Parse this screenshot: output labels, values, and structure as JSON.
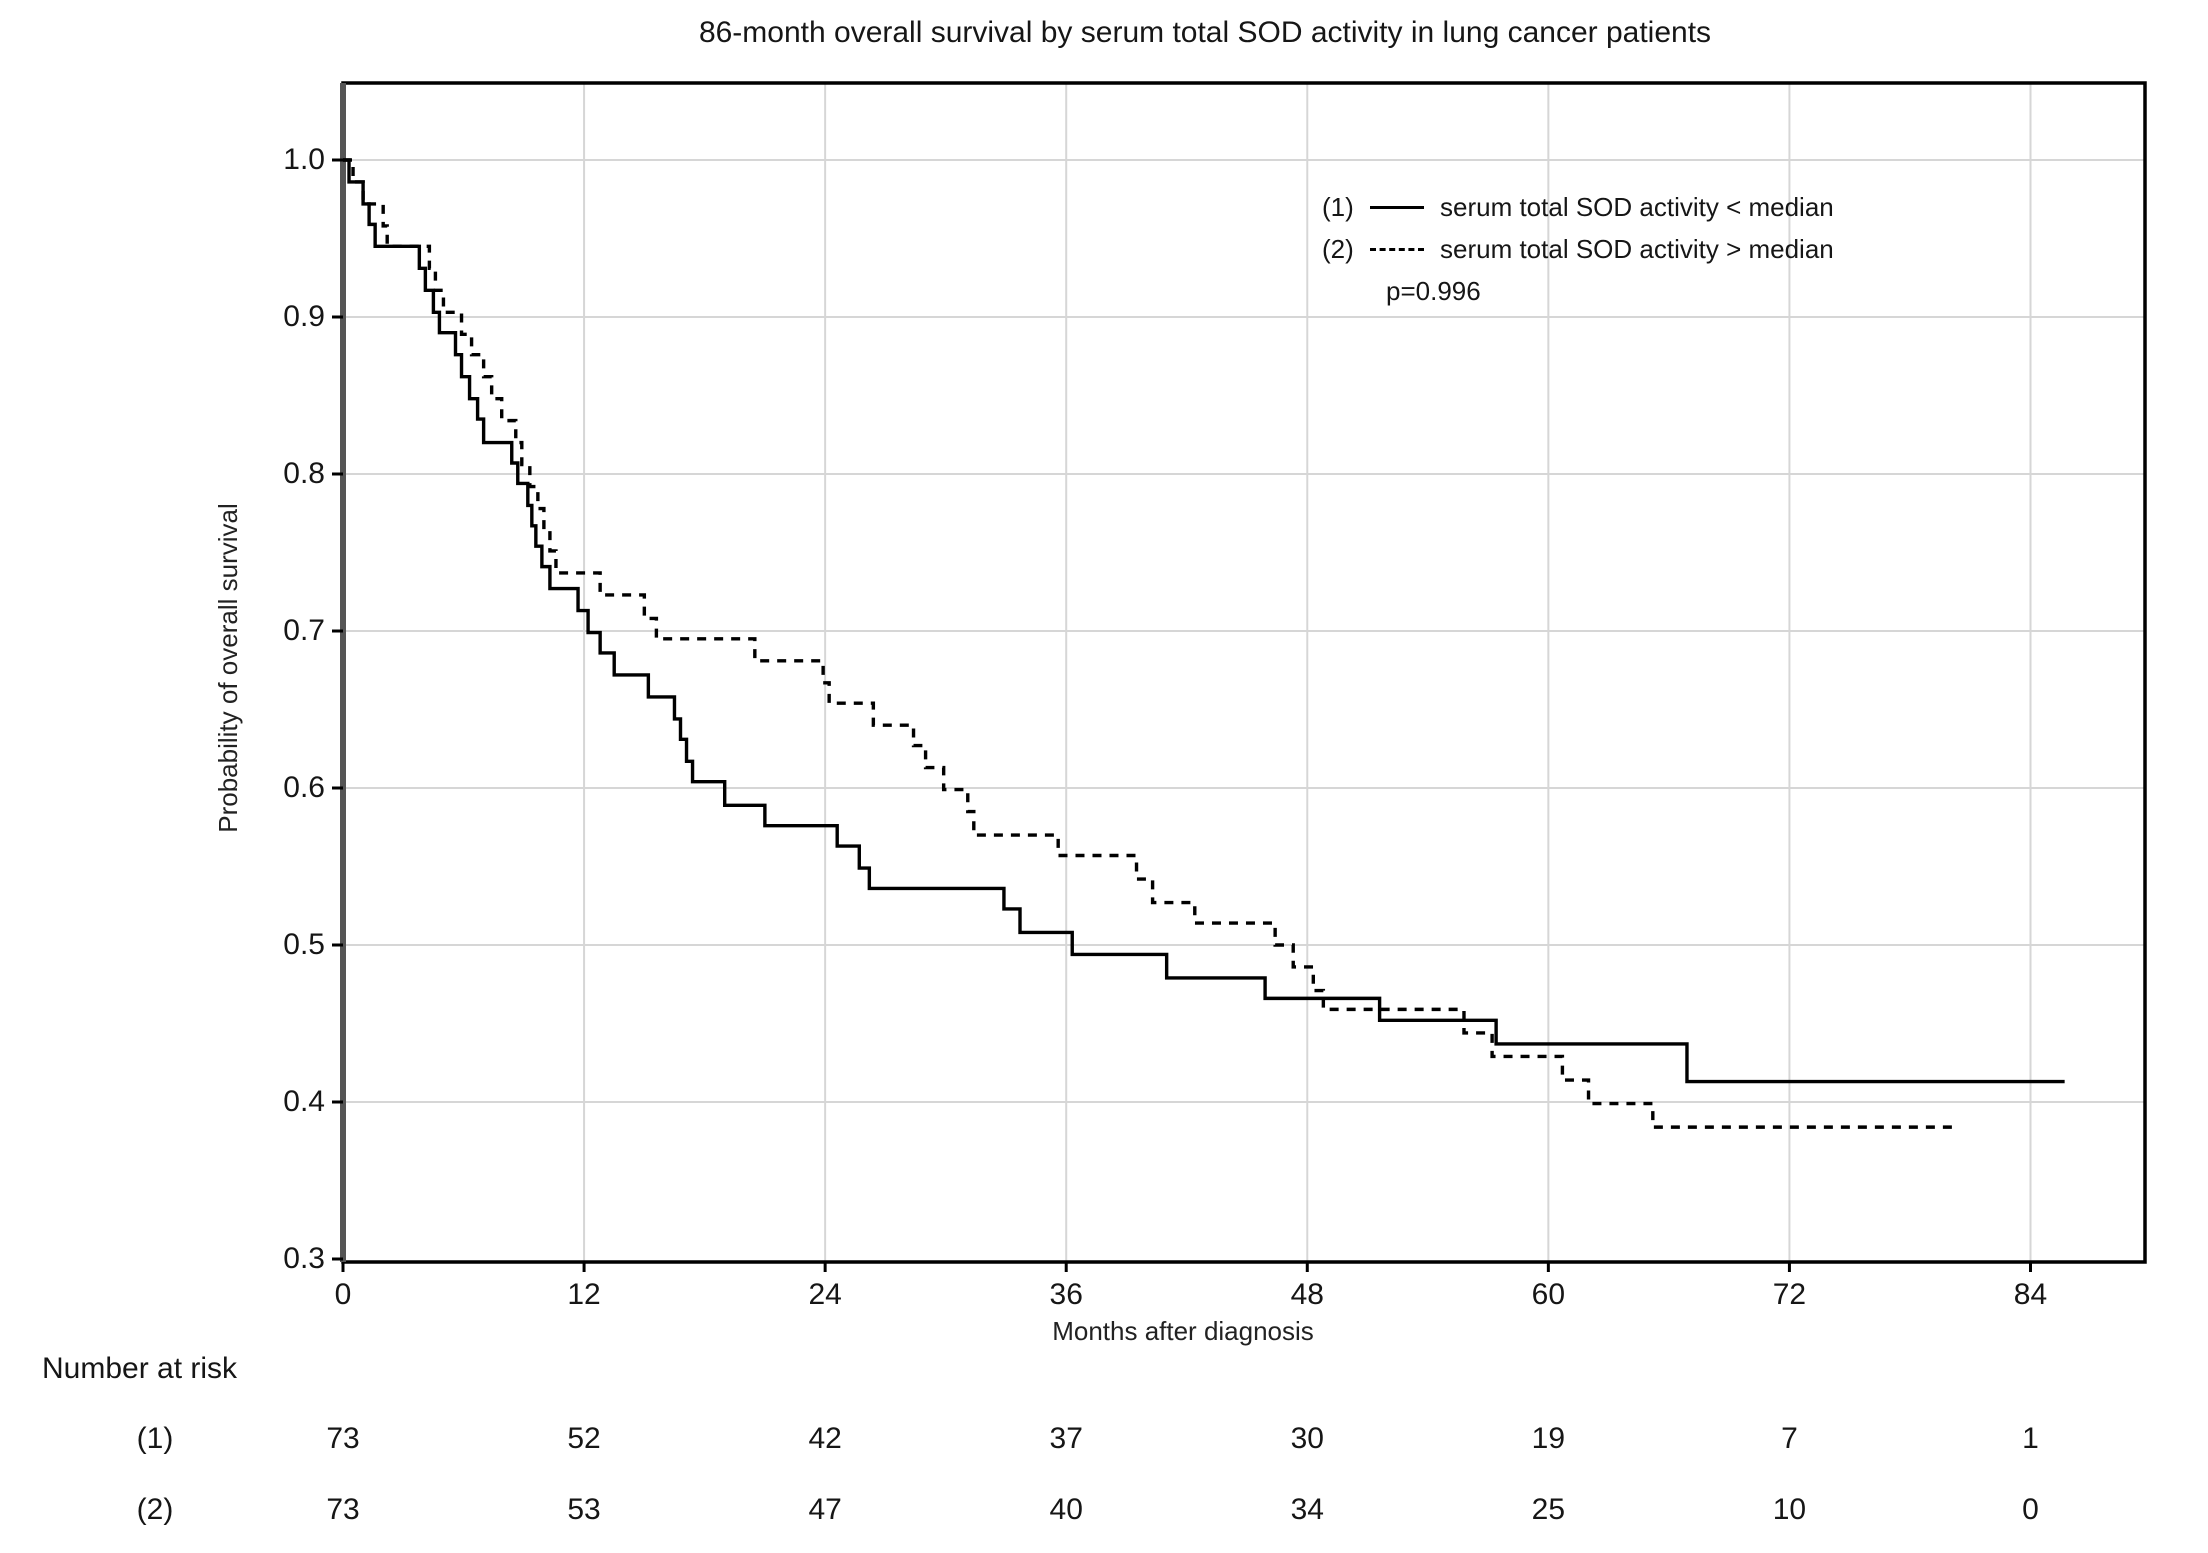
{
  "title": "86-month overall survival by serum total SOD activity in lung cancer patients",
  "y_axis": {
    "label": "Probability of overall survival",
    "ticks": [
      "1.0",
      "0.9",
      "0.8",
      "0.7",
      "0.6",
      "0.5",
      "0.4",
      "0.3"
    ]
  },
  "x_axis": {
    "label": "Months after diagnosis",
    "ticks": [
      "0",
      "12",
      "24",
      "36",
      "48",
      "60",
      "72",
      "84"
    ]
  },
  "legend": {
    "items": [
      {
        "marker_label": "(1)",
        "line_style": "solid",
        "text": "serum total SOD activity < median"
      },
      {
        "marker_label": "(2)",
        "line_style": "dashed",
        "text": "serum total SOD activity > median"
      }
    ],
    "p_value": "p=0.996"
  },
  "number_at_risk": {
    "heading": "Number at risk",
    "rows": [
      {
        "label": "(1)",
        "counts": [
          "73",
          "52",
          "42",
          "37",
          "30",
          "19",
          "7",
          "1"
        ]
      },
      {
        "label": "(2)",
        "counts": [
          "73",
          "53",
          "47",
          "40",
          "34",
          "25",
          "10",
          "0"
        ]
      }
    ]
  },
  "colors": {
    "curve": "#000000",
    "grid": "#d6d6d6",
    "border": "#000000",
    "axis_spine": "#555555",
    "background": "#ffffff",
    "text": "#161616"
  },
  "chart_data": {
    "type": "line",
    "subtype": "kaplan_meier_step",
    "title": "86-month overall survival by serum total SOD activity in lung cancer patients",
    "xlabel": "Months after diagnosis",
    "ylabel": "Probability of overall survival",
    "xlim": [
      0,
      89.7
    ],
    "ylim": [
      0.3,
      1.05
    ],
    "x_tick_values": [
      0,
      12,
      24,
      36,
      48,
      60,
      72,
      84
    ],
    "y_tick_values": [
      1.0,
      0.9,
      0.8,
      0.7,
      0.6,
      0.5,
      0.4,
      0.3
    ],
    "grid": true,
    "legend_position": "upper-right-inside",
    "annotation": "p=0.996",
    "series": [
      {
        "name": "(1) serum total SOD activity < median",
        "style": "solid",
        "end_month": 85.7,
        "steps": [
          [
            0,
            1.0
          ],
          [
            0.3,
            0.986
          ],
          [
            1.0,
            0.972
          ],
          [
            1.3,
            0.959
          ],
          [
            1.6,
            0.945
          ],
          [
            3.8,
            0.931
          ],
          [
            4.1,
            0.917
          ],
          [
            4.5,
            0.903
          ],
          [
            4.8,
            0.89
          ],
          [
            5.6,
            0.876
          ],
          [
            5.9,
            0.862
          ],
          [
            6.3,
            0.848
          ],
          [
            6.7,
            0.835
          ],
          [
            7.0,
            0.82
          ],
          [
            8.4,
            0.807
          ],
          [
            8.7,
            0.794
          ],
          [
            9.2,
            0.78
          ],
          [
            9.4,
            0.767
          ],
          [
            9.6,
            0.754
          ],
          [
            9.9,
            0.741
          ],
          [
            10.3,
            0.727
          ],
          [
            11.7,
            0.713
          ],
          [
            12.2,
            0.699
          ],
          [
            12.8,
            0.686
          ],
          [
            13.5,
            0.672
          ],
          [
            15.2,
            0.658
          ],
          [
            16.5,
            0.644
          ],
          [
            16.8,
            0.631
          ],
          [
            17.1,
            0.617
          ],
          [
            17.4,
            0.604
          ],
          [
            19.0,
            0.589
          ],
          [
            21.0,
            0.576
          ],
          [
            24.6,
            0.563
          ],
          [
            25.7,
            0.549
          ],
          [
            26.2,
            0.536
          ],
          [
            32.9,
            0.523
          ],
          [
            33.7,
            0.508
          ],
          [
            36.3,
            0.494
          ],
          [
            41.0,
            0.479
          ],
          [
            45.9,
            0.466
          ],
          [
            51.6,
            0.452
          ],
          [
            57.4,
            0.437
          ],
          [
            66.9,
            0.413
          ]
        ]
      },
      {
        "name": "(2) serum total SOD activity > median",
        "style": "dashed",
        "end_month": 80.3,
        "steps": [
          [
            0,
            1.0
          ],
          [
            0.5,
            0.986
          ],
          [
            1.0,
            0.972
          ],
          [
            2.0,
            0.958
          ],
          [
            2.2,
            0.945
          ],
          [
            4.3,
            0.931
          ],
          [
            4.6,
            0.917
          ],
          [
            5.0,
            0.903
          ],
          [
            5.9,
            0.889
          ],
          [
            6.4,
            0.876
          ],
          [
            7.0,
            0.862
          ],
          [
            7.4,
            0.848
          ],
          [
            7.9,
            0.834
          ],
          [
            8.6,
            0.82
          ],
          [
            8.9,
            0.806
          ],
          [
            9.3,
            0.792
          ],
          [
            9.7,
            0.778
          ],
          [
            10.0,
            0.764
          ],
          [
            10.3,
            0.751
          ],
          [
            10.6,
            0.737
          ],
          [
            12.8,
            0.723
          ],
          [
            15.0,
            0.708
          ],
          [
            15.6,
            0.695
          ],
          [
            20.5,
            0.681
          ],
          [
            23.9,
            0.667
          ],
          [
            24.2,
            0.654
          ],
          [
            26.4,
            0.64
          ],
          [
            28.4,
            0.627
          ],
          [
            29.0,
            0.613
          ],
          [
            29.9,
            0.599
          ],
          [
            31.1,
            0.585
          ],
          [
            31.4,
            0.57
          ],
          [
            35.6,
            0.557
          ],
          [
            39.5,
            0.542
          ],
          [
            40.3,
            0.527
          ],
          [
            42.4,
            0.514
          ],
          [
            46.4,
            0.5
          ],
          [
            47.3,
            0.486
          ],
          [
            48.3,
            0.471
          ],
          [
            48.8,
            0.459
          ],
          [
            55.8,
            0.444
          ],
          [
            57.2,
            0.429
          ],
          [
            60.7,
            0.414
          ],
          [
            62.0,
            0.399
          ],
          [
            65.2,
            0.384
          ]
        ]
      }
    ]
  }
}
